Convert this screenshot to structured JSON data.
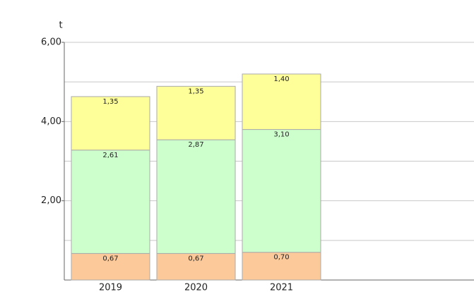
{
  "chart_data": {
    "type": "stacked-bar",
    "y_label": "t",
    "categories": [
      "2019",
      "2020",
      "2021"
    ],
    "series": [
      {
        "color": "#fcc99a",
        "values": [
          0.67,
          0.67,
          0.7
        ],
        "value_labels": [
          "0,67",
          "0,67",
          "0,70"
        ]
      },
      {
        "color": "#ccffcc",
        "values": [
          2.61,
          2.87,
          3.1
        ],
        "value_labels": [
          "2,61",
          "2,87",
          "3,10"
        ]
      },
      {
        "color": "#ffff99",
        "values": [
          1.35,
          1.35,
          1.4
        ],
        "value_labels": [
          "1,35",
          "1,35",
          "1,40"
        ]
      }
    ],
    "ylim": [
      0,
      6
    ],
    "yticks": [
      {
        "value": 2,
        "label": "2,00"
      },
      {
        "value": 4,
        "label": "4,00"
      },
      {
        "value": 6,
        "label": "6,00"
      }
    ],
    "ygrid": [
      1,
      2,
      3,
      4,
      5,
      6
    ],
    "grid": true
  }
}
